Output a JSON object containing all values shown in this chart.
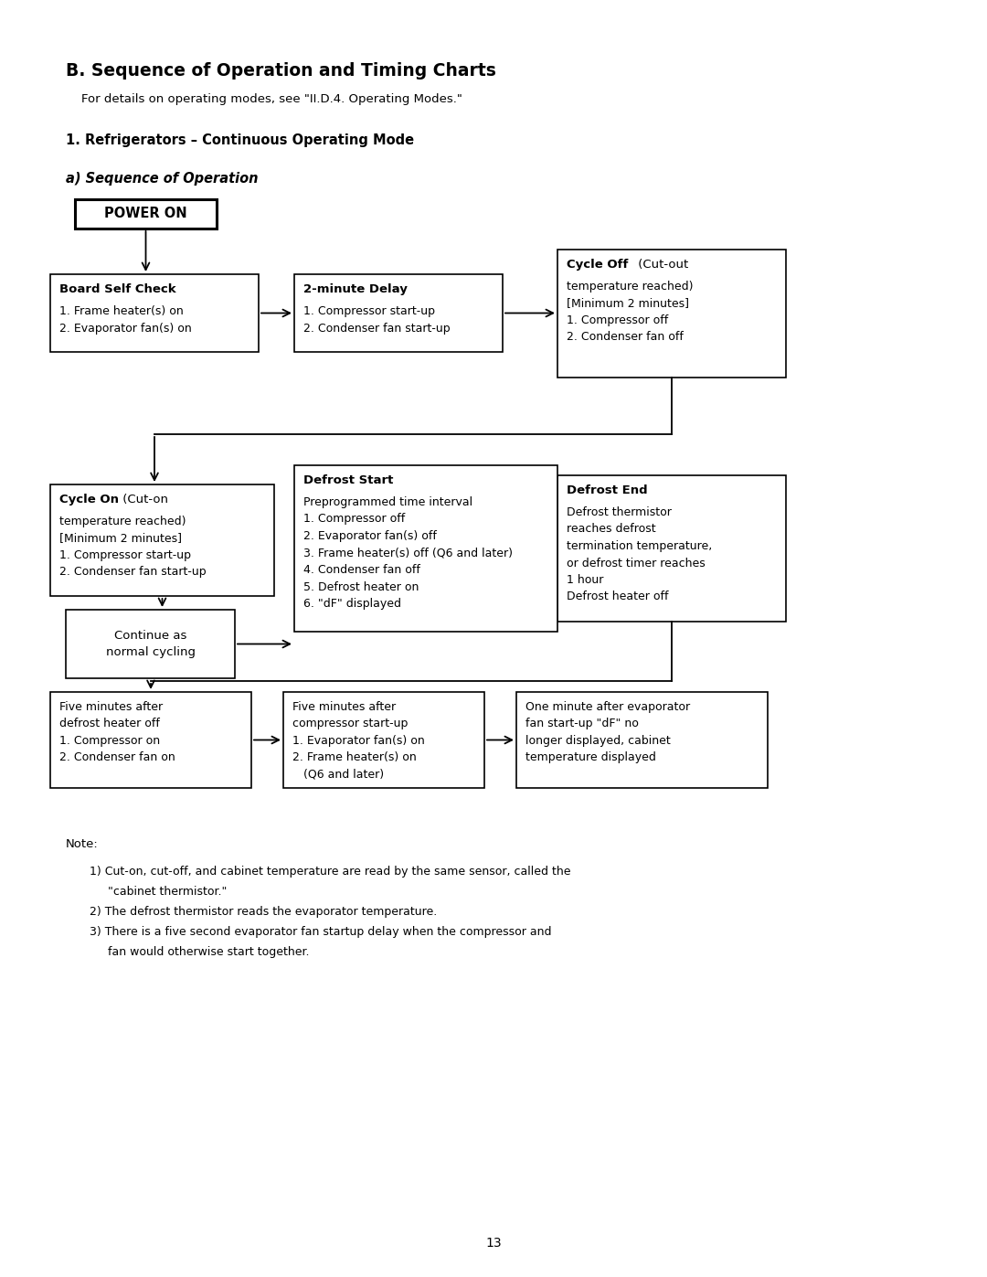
{
  "title": "B. Sequence of Operation and Timing Charts",
  "subtitle": "    For details on operating modes, see \"II.D.4. Operating Modes.\"",
  "section1": "1. Refrigerators – Continuous Operating Mode",
  "section1a": "a) Sequence of Operation",
  "background_color": "#ffffff",
  "page_number": "13",
  "note_header": "Note:",
  "note1a": "1) Cut-on, cut-off, and cabinet temperature are read by the same sensor, called the",
  "note1b": "     \"cabinet thermistor.\"",
  "note2": "2) The defrost thermistor reads the evaporator temperature.",
  "note3a": "3) There is a five second evaporator fan startup delay when the compressor and",
  "note3b": "     fan would otherwise start together."
}
